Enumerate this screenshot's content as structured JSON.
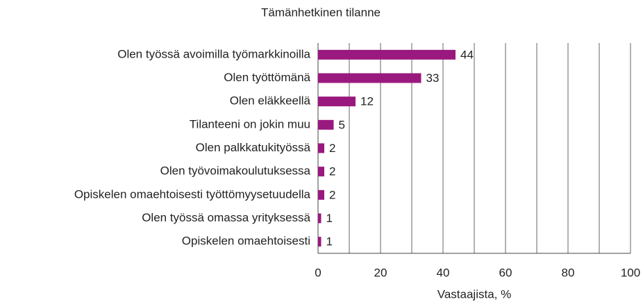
{
  "chart_data": {
    "type": "barh",
    "title": "Tämänhetkinen tilanne",
    "categories": [
      "Olen työssä avoimilla työmarkkinoilla",
      "Olen työttömänä",
      "Olen eläkkeellä",
      "Tilanteeni on jokin muu",
      "Olen palkkatukityössä",
      "Olen työvoimakoulutuksessa",
      "Opiskelen omaehtoisesti työttömyysetuudella",
      "Olen työssä omassa yrityksessä",
      "Opiskelen omaehtoisesti"
    ],
    "values": [
      44,
      33,
      12,
      5,
      2,
      2,
      2,
      1,
      1
    ],
    "color": "#99197f",
    "xlabel": "Vastaajista, %",
    "xlim": [
      0,
      100
    ],
    "xticks": [
      0,
      20,
      40,
      60,
      80,
      100
    ],
    "grid_lines": [
      10,
      20,
      30,
      40,
      50,
      60,
      70,
      80,
      90,
      100
    ],
    "grid": true
  }
}
